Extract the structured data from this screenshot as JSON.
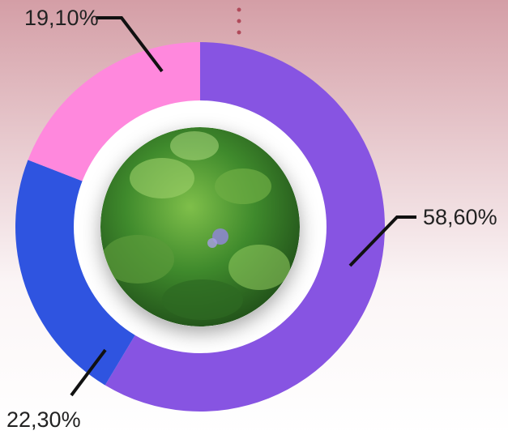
{
  "chart_data": {
    "type": "donut",
    "values": [
      58.6,
      22.3,
      19.1
    ],
    "value_labels": [
      "58,60%",
      "22,30%",
      "19,10%"
    ],
    "colors": [
      "#8754e2",
      "#2f54e0",
      "#ff88dd"
    ]
  }
}
